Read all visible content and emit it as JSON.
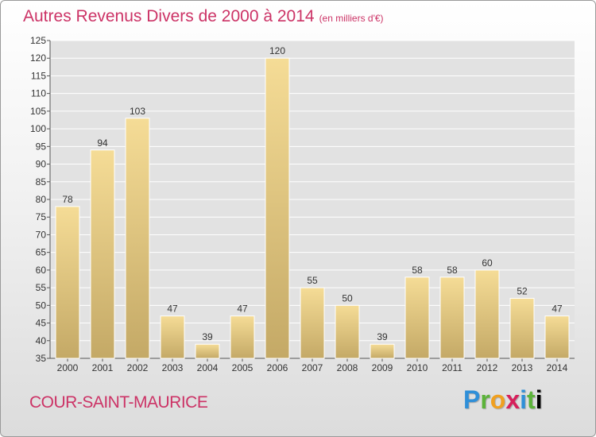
{
  "chart_data": {
    "type": "bar",
    "title": "Autres Revenus Divers de 2000 à 2014",
    "title_unit": "(en milliers d'€)",
    "categories": [
      "2000",
      "2001",
      "2002",
      "2003",
      "2004",
      "2005",
      "2006",
      "2007",
      "2008",
      "2009",
      "2010",
      "2011",
      "2012",
      "2013",
      "2014"
    ],
    "values": [
      78,
      94,
      103,
      47,
      39,
      47,
      120,
      55,
      50,
      39,
      58,
      58,
      60,
      52,
      47
    ],
    "ylim": [
      35,
      125
    ],
    "yticks": [
      35,
      40,
      45,
      50,
      55,
      60,
      65,
      70,
      75,
      80,
      85,
      90,
      95,
      100,
      105,
      110,
      115,
      120,
      125
    ],
    "grid": true,
    "colors": {
      "bar_top": "#f5dc96",
      "bar_bottom": "#c4a966",
      "title": "#cc3366",
      "grid": "#ffffff"
    }
  },
  "footer": {
    "place": "COUR-SAINT-MAURICE",
    "brand_letters": [
      "P",
      "r",
      "o",
      "x",
      "i",
      "t",
      "i"
    ]
  }
}
